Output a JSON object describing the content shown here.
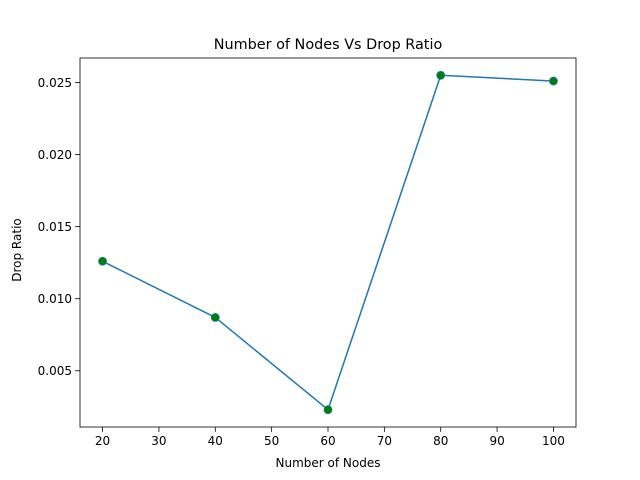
{
  "chart_data": {
    "type": "line",
    "title": "Number of Nodes Vs Drop Ratio",
    "xlabel": "Number of Nodes",
    "ylabel": "Drop Ratio",
    "x": [
      20,
      40,
      60,
      80,
      100
    ],
    "series": [
      {
        "values": [
          0.0126,
          0.0087,
          0.0023,
          0.0255,
          0.0251
        ],
        "line_color": "#1f77b4",
        "marker_color": "#008000"
      }
    ],
    "xlim": [
      16,
      104
    ],
    "ylim": [
      0.0011,
      0.0267
    ],
    "xticks": [
      20,
      30,
      40,
      50,
      60,
      70,
      80,
      90,
      100
    ],
    "xtick_labels": [
      "20",
      "30",
      "40",
      "50",
      "60",
      "70",
      "80",
      "90",
      "100"
    ],
    "yticks": [
      0.005,
      0.01,
      0.015,
      0.02,
      0.025
    ],
    "ytick_labels": [
      "0.005",
      "0.010",
      "0.015",
      "0.020",
      "0.025"
    ],
    "grid": false,
    "legend": "none"
  }
}
